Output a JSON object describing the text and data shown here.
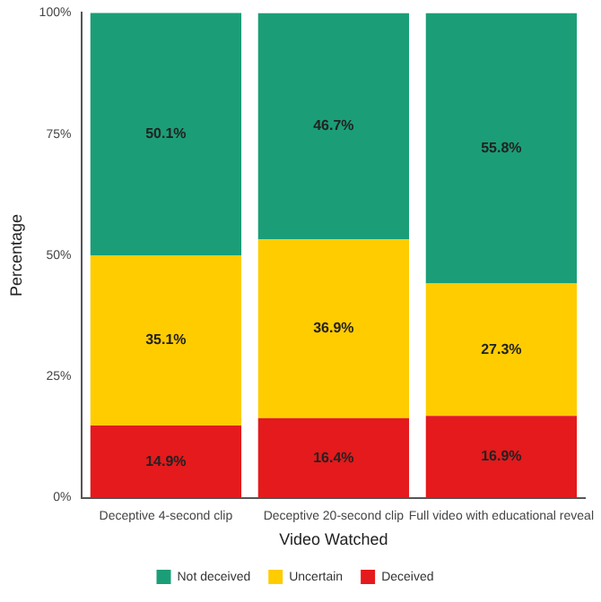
{
  "chart_data": {
    "type": "bar",
    "stacked": true,
    "xlabel": "Video Watched",
    "ylabel": "Percentage",
    "categories": [
      "Deceptive 4-second clip",
      "Deceptive 20-second clip",
      "Full video with educational reveal"
    ],
    "series": [
      {
        "name": "Deceived",
        "color": "#e41a1c",
        "values": [
          14.9,
          16.4,
          16.9
        ],
        "value_labels": [
          "14.9%",
          "16.4%",
          "16.9%"
        ]
      },
      {
        "name": "Uncertain",
        "color": "#ffcc00",
        "values": [
          35.1,
          36.9,
          27.3
        ],
        "value_labels": [
          "35.1%",
          "36.9%",
          "27.3%"
        ]
      },
      {
        "name": "Not deceived",
        "color": "#1b9e77",
        "values": [
          50.1,
          46.7,
          55.8
        ],
        "value_labels": [
          "50.1%",
          "46.7%",
          "55.8%"
        ]
      }
    ],
    "ylim": [
      0,
      100
    ],
    "yticks": [
      {
        "value": 0,
        "label": "0%"
      },
      {
        "value": 25,
        "label": "25%"
      },
      {
        "value": 50,
        "label": "50%"
      },
      {
        "value": 75,
        "label": "75%"
      },
      {
        "value": 100,
        "label": "100%"
      }
    ],
    "grid": false,
    "legend": "bottom"
  }
}
